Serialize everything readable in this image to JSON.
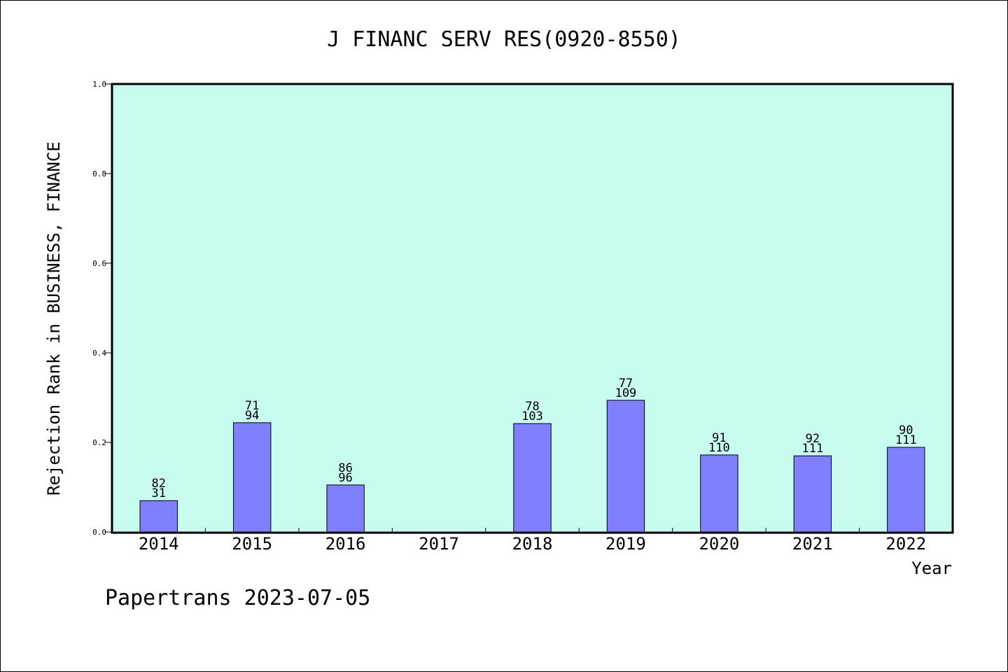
{
  "chart_data": {
    "type": "bar",
    "title": "J FINANC SERV RES(0920-8550)",
    "xlabel": "Year",
    "ylabel": "Rejection Rank in BUSINESS, FINANCE",
    "ylim": [
      0,
      1.0
    ],
    "yticks": [
      "0.0",
      "0.2",
      "0.4",
      "0.6",
      "0.8",
      "1.0"
    ],
    "categories": [
      "2014",
      "2015",
      "2016",
      "2017",
      "2018",
      "2019",
      "2020",
      "2021",
      "2022"
    ],
    "values": [
      0.07,
      0.244,
      0.105,
      null,
      0.242,
      0.294,
      0.172,
      0.17,
      0.189
    ],
    "labels_top": [
      "82",
      "71",
      "86",
      "",
      "78",
      "77",
      "91",
      "92",
      "90"
    ],
    "labels_bottom": [
      "31",
      "94",
      "96",
      "",
      "103",
      "109",
      "110",
      "111",
      "111"
    ],
    "grid": false,
    "colors": {
      "plot_background": "#c8fcee",
      "bar_fill": "#8080ff",
      "bar_stroke": "#000000",
      "axis": "#000000"
    }
  },
  "footer": {
    "text": "Papertrans 2023-07-05"
  }
}
